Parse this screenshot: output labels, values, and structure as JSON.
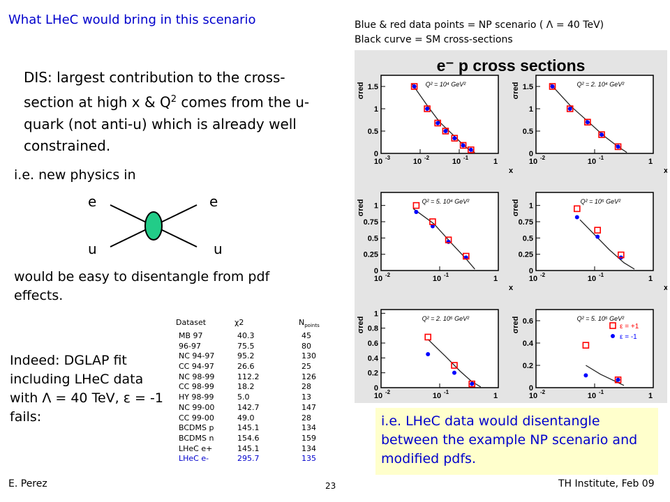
{
  "slide": {
    "title": "What LHeC would bring in this scenario",
    "legend_note": {
      "line1": "Blue & red data points = NP scenario ( Λ = 40 TeV)",
      "line2": "Black curve = SM cross-sections"
    },
    "dis_text": {
      "part1": "DIS: largest contribution to the cross-section at high x & Q",
      "sup": "2",
      "part2": " comes from the u-quark (not anti-u) which is already well constrained."
    },
    "ie_text": "i.e. new physics in",
    "feynman": {
      "top_left": "e",
      "top_right": "e",
      "bottom_left": "u",
      "bottom_right": "u",
      "blob_color": "#22cc88"
    },
    "easy_text": "would be easy to disentangle from pdf effects.",
    "indeed_text": "Indeed: DGLAP fit including LHeC data with Λ = 40 TeV, ε = -1 fails:",
    "fit_table": {
      "headers": {
        "dataset": "Dataset",
        "chi2": "χ2",
        "npoints": "N",
        "npoints_sub": "points"
      },
      "rows": [
        {
          "dataset": "MB 97",
          "chi2": "40.3",
          "npoints": "45"
        },
        {
          "dataset": "96-97",
          "chi2": "75.5",
          "npoints": "80"
        },
        {
          "dataset": "NC 94-97",
          "chi2": "95.2",
          "npoints": "130"
        },
        {
          "dataset": "CC 94-97",
          "chi2": "26.6",
          "npoints": "25"
        },
        {
          "dataset": "NC 98-99",
          "chi2": "112.2",
          "npoints": "126"
        },
        {
          "dataset": "CC 98-99",
          "chi2": "18.2",
          "npoints": "28"
        },
        {
          "dataset": "HY 98-99",
          "chi2": "5.0",
          "npoints": "13"
        },
        {
          "dataset": "NC 99-00",
          "chi2": "142.7",
          "npoints": "147"
        },
        {
          "dataset": "CC 99-00",
          "chi2": "49.0",
          "npoints": "28"
        },
        {
          "dataset": "BCDMS p",
          "chi2": "145.1",
          "npoints": "134"
        },
        {
          "dataset": "BCDMS n",
          "chi2": "154.6",
          "npoints": "159"
        },
        {
          "dataset": "LHeC e+",
          "chi2": "145.1",
          "npoints": "134"
        },
        {
          "dataset": "LHeC e-",
          "chi2": "295.7",
          "npoints": "135",
          "highlight": true
        }
      ]
    },
    "conclusion": "i.e. LHeC data would disentangle between the example NP scenario and modified pdfs.",
    "footer": {
      "author": "E. Perez",
      "page": "23",
      "venue": "TH Institute, Feb 09"
    }
  },
  "chart_data": {
    "type": "scatter",
    "title": "e⁻ p cross sections",
    "ylabel": "σred",
    "xlabel": "x",
    "colors": {
      "plus": "#ff0000",
      "minus": "#0000ff",
      "curve": "#222222"
    },
    "legend": {
      "plus": "ε = +1",
      "minus": "ε = -1"
    },
    "panels": [
      {
        "q2_label": "Q² = 10⁴ GeV²",
        "xlog": [
          -3,
          0
        ],
        "xticks": [
          "10",
          "10",
          "10",
          "1"
        ],
        "xtick_exps": [
          "-3",
          "-2",
          "-1",
          ""
        ],
        "yrange": [
          0,
          1.75
        ],
        "yticks": [
          "0",
          "0.5",
          "1",
          "1.5"
        ],
        "curve": [
          [
            -2.2,
            1.55
          ],
          [
            -1.8,
            1.05
          ],
          [
            -1.5,
            0.7
          ],
          [
            -1.2,
            0.45
          ],
          [
            -1.0,
            0.28
          ],
          [
            -0.8,
            0.12
          ],
          [
            -0.6,
            0.02
          ]
        ],
        "points": [
          {
            "x": -2.15,
            "plus": 1.5,
            "minus": 1.5
          },
          {
            "x": -1.82,
            "plus": 1.0,
            "minus": 1.0
          },
          {
            "x": -1.55,
            "plus": 0.68,
            "minus": 0.68
          },
          {
            "x": -1.35,
            "plus": 0.5,
            "minus": 0.5
          },
          {
            "x": -1.12,
            "plus": 0.34,
            "minus": 0.34
          },
          {
            "x": -0.9,
            "plus": 0.18,
            "minus": 0.18
          },
          {
            "x": -0.7,
            "plus": 0.08,
            "minus": 0.08
          }
        ]
      },
      {
        "q2_label": "Q² = 2. 10⁴ GeV²",
        "xlog": [
          -2,
          0
        ],
        "xticks": [
          "10",
          "10",
          "1"
        ],
        "xtick_exps": [
          "-2",
          "-1",
          ""
        ],
        "yrange": [
          0,
          1.75
        ],
        "yticks": [
          "0",
          "0.5",
          "1",
          "1.5"
        ],
        "curve": [
          [
            -1.75,
            1.55
          ],
          [
            -1.4,
            1.05
          ],
          [
            -1.1,
            0.7
          ],
          [
            -0.85,
            0.4
          ],
          [
            -0.6,
            0.15
          ],
          [
            -0.45,
            0.02
          ]
        ],
        "points": [
          {
            "x": -1.72,
            "plus": 1.5,
            "minus": 1.5
          },
          {
            "x": -1.42,
            "plus": 1.0,
            "minus": 1.0
          },
          {
            "x": -1.12,
            "plus": 0.7,
            "minus": 0.7
          },
          {
            "x": -0.88,
            "plus": 0.42,
            "minus": 0.42
          },
          {
            "x": -0.6,
            "plus": 0.15,
            "minus": 0.15
          }
        ]
      },
      {
        "q2_label": "Q² = 5. 10⁴ GeV²",
        "xlog": [
          -2,
          0
        ],
        "xticks": [
          "10",
          "10",
          "1"
        ],
        "xtick_exps": [
          "-2",
          "-1",
          ""
        ],
        "yrange": [
          0,
          1.2
        ],
        "yticks": [
          "0",
          "0.25",
          "0.5",
          "0.75",
          "1"
        ],
        "curve": [
          [
            -1.45,
            0.95
          ],
          [
            -1.1,
            0.72
          ],
          [
            -0.8,
            0.42
          ],
          [
            -0.55,
            0.18
          ],
          [
            -0.4,
            0.02
          ]
        ],
        "points": [
          {
            "x": -1.4,
            "plus": 1.0,
            "minus": 0.9
          },
          {
            "x": -1.12,
            "plus": 0.75,
            "minus": 0.68
          },
          {
            "x": -0.85,
            "plus": 0.47,
            "minus": 0.44
          },
          {
            "x": -0.55,
            "plus": 0.22,
            "minus": 0.2
          }
        ]
      },
      {
        "q2_label": "Q² = 10⁵ GeV²",
        "xlog": [
          -2,
          0
        ],
        "xticks": [
          "10",
          "10",
          "1"
        ],
        "xtick_exps": [
          "-2",
          "-1",
          ""
        ],
        "yrange": [
          0,
          1.2
        ],
        "yticks": [
          "0",
          "0.25",
          "0.5",
          "0.75",
          "1"
        ],
        "curve": [
          [
            -1.25,
            0.78
          ],
          [
            -1.0,
            0.55
          ],
          [
            -0.75,
            0.32
          ],
          [
            -0.5,
            0.12
          ],
          [
            -0.32,
            0.02
          ]
        ],
        "points": [
          {
            "x": -1.3,
            "plus": 0.95,
            "minus": 0.82
          },
          {
            "x": -0.95,
            "plus": 0.62,
            "minus": 0.52
          },
          {
            "x": -0.55,
            "plus": 0.24,
            "minus": 0.2
          }
        ]
      },
      {
        "q2_label": "Q² = 2. 10⁵ GeV²",
        "xlog": [
          -2,
          0
        ],
        "xticks": [
          "10",
          "10",
          "1"
        ],
        "xtick_exps": [
          "-2",
          "-1",
          ""
        ],
        "yrange": [
          0,
          1.05
        ],
        "yticks": [
          "0",
          "0.2",
          "0.4",
          "0.6",
          "0.8",
          "1"
        ],
        "curve": [
          [
            -1.2,
            0.65
          ],
          [
            -0.9,
            0.42
          ],
          [
            -0.65,
            0.22
          ],
          [
            -0.45,
            0.08
          ],
          [
            -0.3,
            0.01
          ]
        ],
        "points": [
          {
            "x": -1.2,
            "plus": 0.68,
            "minus": 0.45
          },
          {
            "x": -0.75,
            "plus": 0.3,
            "minus": 0.2
          },
          {
            "x": -0.45,
            "plus": 0.05,
            "minus": 0.05
          }
        ]
      },
      {
        "q2_label": "Q² = 5. 10⁵ GeV²",
        "xlog": [
          -2,
          0
        ],
        "xticks": [
          "10",
          "10",
          "1"
        ],
        "xtick_exps": [
          "-2",
          "-1",
          ""
        ],
        "yrange": [
          0,
          0.7
        ],
        "yticks": [
          "0",
          "0.2",
          "0.4",
          "0.6"
        ],
        "curve": [
          [
            -1.15,
            0.2
          ],
          [
            -0.9,
            0.12
          ],
          [
            -0.7,
            0.07
          ],
          [
            -0.5,
            0.02
          ]
        ],
        "points": [
          {
            "x": -1.15,
            "plus": 0.38,
            "minus": 0.11
          },
          {
            "x": -0.6,
            "plus": 0.07,
            "minus": 0.07
          }
        ]
      }
    ]
  }
}
